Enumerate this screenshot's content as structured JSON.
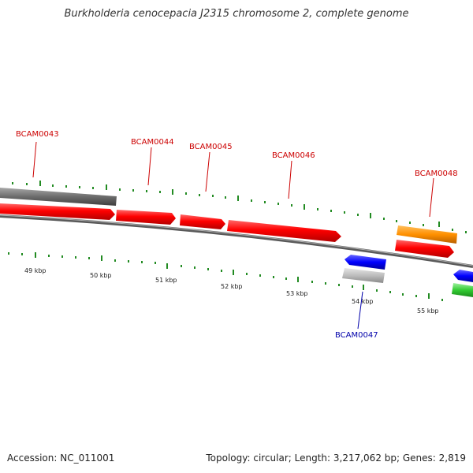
{
  "header": {
    "title": "Burkholderia cenocepacia J2315 chromosome 2, complete genome"
  },
  "footer": {
    "accession": "Accession: NC_011001",
    "stats": "Topology: circular; Length: 3,217,062 bp; Genes: 2,819"
  },
  "colors": {
    "forward_cds": "#ff0000",
    "reverse_cds": "#0000ff",
    "grey_feature": "#7a7a7a",
    "rna_feature": "#ff8c00",
    "green_feature": "#33cc33",
    "forward_label": "#cc0000",
    "reverse_label": "#0000aa",
    "tick": "#228b22",
    "backbone": "#6e6e6e"
  },
  "scale_labels": [
    "49 kbp",
    "50 kbp",
    "51 kbp",
    "52 kbp",
    "53 kbp",
    "54 kbp",
    "55 kbp"
  ],
  "gene_labels": [
    {
      "text": "BCAM0043",
      "strand": "forward"
    },
    {
      "text": "BCAM0044",
      "strand": "forward"
    },
    {
      "text": "BCAM0045",
      "strand": "forward"
    },
    {
      "text": "BCAM0046",
      "strand": "forward"
    },
    {
      "text": "BCAM0048",
      "strand": "forward"
    },
    {
      "text": "BCAM0047",
      "strand": "reverse"
    }
  ]
}
